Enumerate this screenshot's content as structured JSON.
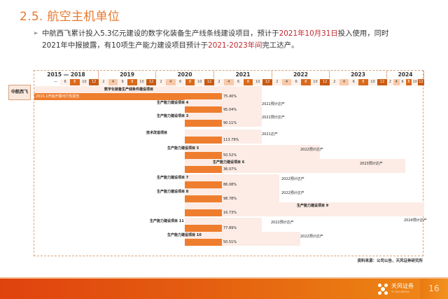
{
  "page": {
    "title": "2.5. 航空主机单位",
    "bullet": {
      "part1": "中航西飞累计投入5.3亿元建设的数字化装备生产线条线建设项目，预计于",
      "highlight1": "2021年10月31日",
      "part2": "投入使用，同时2021年中报披露，有10项生产能力建设项目预计于",
      "highlight2": "2021-2023年间",
      "part3": "完工达产。"
    },
    "company": "中航西飞",
    "source": "资料来源：公司公告，天风证券研究所",
    "footer": {
      "logo_text": "天风证券",
      "logo_sub": "TF SECURITIES",
      "page_number": "16"
    }
  },
  "colors": {
    "title": "#e8782c",
    "highlight": "#c0272d",
    "bar": "#ee7d2e",
    "band": "#fcece5",
    "footer": "#e45e10"
  },
  "chart_data": {
    "type": "gantt",
    "title": "",
    "timeline": {
      "years": [
        "2015 — 2018",
        "2019",
        "2020",
        "2021",
        "2022",
        "2023",
        "2024"
      ],
      "month_ticks": {
        "2015 — 2018": [
          "—",
          "6",
          "8",
          "10",
          "12"
        ],
        "2019": [
          "2",
          "4",
          "6",
          "8",
          "10",
          "12"
        ],
        "2020": [
          "2",
          "4",
          "6",
          "8",
          "10",
          "12"
        ],
        "2021": [
          "2",
          "4",
          "6",
          "8",
          "10",
          "12"
        ],
        "2022": [
          "2",
          "4",
          "6",
          "8",
          "10",
          "12"
        ],
        "2023": [
          "2",
          "4",
          "6",
          "8",
          "10",
          "12"
        ],
        "2024": [
          "2",
          "4",
          "6",
          "8",
          "10",
          "12"
        ]
      }
    },
    "tasks": [
      {
        "name": "数字化装备生产线条件建设项目",
        "start_note": "2015.1开始开展可行性报告",
        "progress": "75.40%",
        "target": ""
      },
      {
        "name": "生产能力建设项目 4",
        "progress": "95.04%",
        "target": "2021预计达产"
      },
      {
        "name": "生产能力建设项目 3",
        "progress": "90.11%",
        "target": "2021预计达产"
      },
      {
        "name": "技术改造项目",
        "progress": "113.79%",
        "target": "2021达产"
      },
      {
        "name": "生产能力建设项目 5",
        "progress": "50.52%",
        "target": "2022预计达产"
      },
      {
        "name": "生产能力建设项目 6",
        "progress": "36.07%",
        "target": "2023预计达产"
      },
      {
        "name": "生产能力建设项目 7",
        "progress": "86.08%",
        "target": "2022预计达产"
      },
      {
        "name": "生产能力建设项目 8",
        "progress": "98.78%",
        "target": "2022预计达产"
      },
      {
        "name": "生产能力建设项目 9",
        "progress": "16.73%",
        "target": "2024预计达产"
      },
      {
        "name": "生产能力建设项目 11",
        "progress": "77.89%",
        "target": "2022预计达产"
      },
      {
        "name": "生产能力建设项目 10",
        "progress": "50.51%",
        "target": "2022预计达产"
      }
    ]
  }
}
